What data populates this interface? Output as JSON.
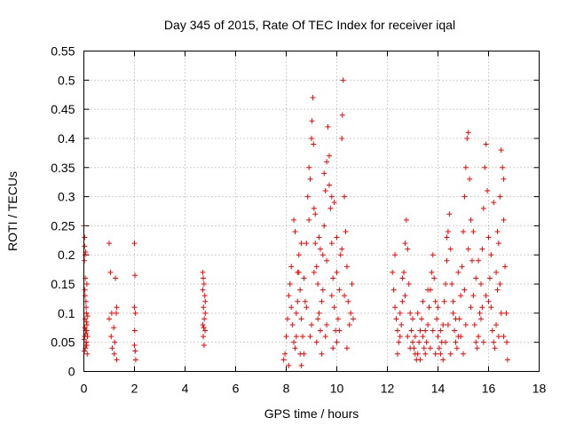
{
  "chart_data": {
    "type": "scatter",
    "title": "Day 345 of 2015, Rate Of TEC Index for receiver iqal",
    "xlabel": "GPS time / hours",
    "ylabel": "ROTI / TECUs",
    "xlim": [
      0,
      18
    ],
    "ylim": [
      0,
      0.55
    ],
    "grid": true,
    "marker": "+",
    "color": "#ff0000",
    "x_ticks": [
      "0",
      "2",
      "4",
      "6",
      "8",
      "10",
      "12",
      "14",
      "16",
      "18"
    ],
    "y_ticks": [
      "0",
      "0.05",
      "0.1",
      "0.15",
      "0.2",
      "0.25",
      "0.3",
      "0.35",
      "0.4",
      "0.45",
      "0.5",
      "0.55"
    ],
    "series": [
      {
        "name": "ROTI",
        "points": [
          [
            0.0,
            0.25
          ],
          [
            0.03,
            0.23
          ],
          [
            0.05,
            0.2
          ],
          [
            0.02,
            0.19
          ],
          [
            0.06,
            0.16
          ],
          [
            0.04,
            0.14
          ],
          [
            0.08,
            0.12
          ],
          [
            0.1,
            0.1
          ],
          [
            0.05,
            0.09
          ],
          [
            0.12,
            0.08
          ],
          [
            0.07,
            0.07
          ],
          [
            0.03,
            0.06
          ],
          [
            0.09,
            0.05
          ],
          [
            0.11,
            0.045
          ],
          [
            0.06,
            0.04
          ],
          [
            0.02,
            0.035
          ],
          [
            0.13,
            0.03
          ],
          [
            0.08,
            0.065
          ],
          [
            0.04,
            0.075
          ],
          [
            0.1,
            0.085
          ],
          [
            0.12,
            0.15
          ],
          [
            0.15,
            0.095
          ],
          [
            0.01,
            0.055
          ],
          [
            0.09,
            0.11
          ],
          [
            0.14,
            0.06
          ],
          [
            0.05,
            0.13
          ],
          [
            0.03,
            0.215
          ],
          [
            0.07,
            0.205
          ],
          [
            0.08,
            0.045
          ],
          [
            0.11,
            0.07
          ],
          [
            1.0,
            0.22
          ],
          [
            1.05,
            0.17
          ],
          [
            1.1,
            0.1
          ],
          [
            1.0,
            0.09
          ],
          [
            1.08,
            0.06
          ],
          [
            1.12,
            0.04
          ],
          [
            1.2,
            0.03
          ],
          [
            1.25,
            0.16
          ],
          [
            1.3,
            0.11
          ],
          [
            1.28,
            0.1
          ],
          [
            1.22,
            0.05
          ],
          [
            1.3,
            0.02
          ],
          [
            1.18,
            0.075
          ],
          [
            2.0,
            0.22
          ],
          [
            2.02,
            0.165
          ],
          [
            2.0,
            0.11
          ],
          [
            2.04,
            0.1
          ],
          [
            2.01,
            0.07
          ],
          [
            2.0,
            0.045
          ],
          [
            2.03,
            0.035
          ],
          [
            2.05,
            0.02
          ],
          [
            4.7,
            0.17
          ],
          [
            4.72,
            0.16
          ],
          [
            4.75,
            0.15
          ],
          [
            4.7,
            0.14
          ],
          [
            4.78,
            0.13
          ],
          [
            4.73,
            0.11
          ],
          [
            4.8,
            0.1
          ],
          [
            4.76,
            0.09
          ],
          [
            4.7,
            0.08
          ],
          [
            4.74,
            0.075
          ],
          [
            4.79,
            0.07
          ],
          [
            4.72,
            0.06
          ],
          [
            4.75,
            0.045
          ],
          [
            4.8,
            0.12
          ],
          [
            7.9,
            0.02
          ],
          [
            7.95,
            0.03
          ],
          [
            8.0,
            0.06
          ],
          [
            8.05,
            0.09
          ],
          [
            8.1,
            0.13
          ],
          [
            8.15,
            0.15
          ],
          [
            8.2,
            0.11
          ],
          [
            8.25,
            0.08
          ],
          [
            8.3,
            0.05
          ],
          [
            8.35,
            0.04
          ],
          [
            8.4,
            0.1
          ],
          [
            8.45,
            0.17
          ],
          [
            8.5,
            0.2
          ],
          [
            8.55,
            0.14
          ],
          [
            8.6,
            0.09
          ],
          [
            8.65,
            0.06
          ],
          [
            8.7,
            0.03
          ],
          [
            8.75,
            0.12
          ],
          [
            8.8,
            0.22
          ],
          [
            8.85,
            0.3
          ],
          [
            8.9,
            0.35
          ],
          [
            8.95,
            0.33
          ],
          [
            9.0,
            0.4
          ],
          [
            9.02,
            0.43
          ],
          [
            9.05,
            0.47
          ],
          [
            9.08,
            0.39
          ],
          [
            9.1,
            0.28
          ],
          [
            9.15,
            0.22
          ],
          [
            9.2,
            0.18
          ],
          [
            9.25,
            0.15
          ],
          [
            9.3,
            0.1
          ],
          [
            9.35,
            0.07
          ],
          [
            9.4,
            0.12
          ],
          [
            9.45,
            0.2
          ],
          [
            9.5,
            0.25
          ],
          [
            9.55,
            0.31
          ],
          [
            9.6,
            0.36
          ],
          [
            9.65,
            0.42
          ],
          [
            9.7,
            0.37
          ],
          [
            9.75,
            0.28
          ],
          [
            9.8,
            0.22
          ],
          [
            9.85,
            0.16
          ],
          [
            9.9,
            0.11
          ],
          [
            9.95,
            0.07
          ],
          [
            10.0,
            0.05
          ],
          [
            10.05,
            0.09
          ],
          [
            10.1,
            0.14
          ],
          [
            10.15,
            0.2
          ],
          [
            10.2,
            0.4
          ],
          [
            10.22,
            0.44
          ],
          [
            10.25,
            0.5
          ],
          [
            10.3,
            0.3
          ],
          [
            10.35,
            0.24
          ],
          [
            10.4,
            0.18
          ],
          [
            10.45,
            0.12
          ],
          [
            10.5,
            0.08
          ],
          [
            10.55,
            0.1
          ],
          [
            10.6,
            0.15
          ],
          [
            10.65,
            0.09
          ],
          [
            8.3,
            0.26
          ],
          [
            8.35,
            0.24
          ],
          [
            8.5,
            0.17
          ],
          [
            8.7,
            0.16
          ],
          [
            8.9,
            0.26
          ],
          [
            9.1,
            0.17
          ],
          [
            9.3,
            0.23
          ],
          [
            9.45,
            0.14
          ],
          [
            9.6,
            0.19
          ],
          [
            9.8,
            0.3
          ],
          [
            10.0,
            0.23
          ],
          [
            10.1,
            0.07
          ],
          [
            8.2,
            0.18
          ],
          [
            8.4,
            0.06
          ],
          [
            8.6,
            0.22
          ],
          [
            8.8,
            0.11
          ],
          [
            9.0,
            0.08
          ],
          [
            9.2,
            0.05
          ],
          [
            9.4,
            0.03
          ],
          [
            9.6,
            0.08
          ],
          [
            9.8,
            0.13
          ],
          [
            10.0,
            0.17
          ],
          [
            8.1,
            0.01
          ],
          [
            8.6,
            0.01
          ],
          [
            9.5,
            0.34
          ],
          [
            9.7,
            0.32
          ],
          [
            9.9,
            0.29
          ],
          [
            10.2,
            0.21
          ],
          [
            10.4,
            0.04
          ],
          [
            8.95,
            0.06
          ],
          [
            9.15,
            0.27
          ],
          [
            9.35,
            0.21
          ],
          [
            8.55,
            0.03
          ],
          [
            8.45,
            0.12
          ],
          [
            9.25,
            0.09
          ],
          [
            9.55,
            0.06
          ],
          [
            9.85,
            0.04
          ],
          [
            10.3,
            0.13
          ],
          [
            12.2,
            0.17
          ],
          [
            12.25,
            0.14
          ],
          [
            12.3,
            0.11
          ],
          [
            12.35,
            0.09
          ],
          [
            12.4,
            0.07
          ],
          [
            12.45,
            0.05
          ],
          [
            12.5,
            0.06
          ],
          [
            12.55,
            0.08
          ],
          [
            12.6,
            0.12
          ],
          [
            12.65,
            0.17
          ],
          [
            12.7,
            0.22
          ],
          [
            12.75,
            0.26
          ],
          [
            12.8,
            0.21
          ],
          [
            12.85,
            0.15
          ],
          [
            12.9,
            0.1
          ],
          [
            12.95,
            0.07
          ],
          [
            13.0,
            0.05
          ],
          [
            13.05,
            0.04
          ],
          [
            13.1,
            0.03
          ],
          [
            13.15,
            0.02
          ],
          [
            13.2,
            0.03
          ],
          [
            13.25,
            0.05
          ],
          [
            13.3,
            0.07
          ],
          [
            13.35,
            0.09
          ],
          [
            13.4,
            0.06
          ],
          [
            13.45,
            0.04
          ],
          [
            13.5,
            0.03
          ],
          [
            13.55,
            0.05
          ],
          [
            13.6,
            0.08
          ],
          [
            13.65,
            0.11
          ],
          [
            13.7,
            0.14
          ],
          [
            13.75,
            0.17
          ],
          [
            13.8,
            0.2
          ],
          [
            13.85,
            0.16
          ],
          [
            13.9,
            0.12
          ],
          [
            13.95,
            0.09
          ],
          [
            14.0,
            0.06
          ],
          [
            14.05,
            0.04
          ],
          [
            14.1,
            0.03
          ],
          [
            14.15,
            0.05
          ],
          [
            14.2,
            0.08
          ],
          [
            14.25,
            0.12
          ],
          [
            14.3,
            0.15
          ],
          [
            14.35,
            0.19
          ],
          [
            14.4,
            0.24
          ],
          [
            14.45,
            0.27
          ],
          [
            14.5,
            0.21
          ],
          [
            14.55,
            0.15
          ],
          [
            14.6,
            0.1
          ],
          [
            14.65,
            0.07
          ],
          [
            14.7,
            0.05
          ],
          [
            14.75,
            0.04
          ],
          [
            14.8,
            0.06
          ],
          [
            14.85,
            0.09
          ],
          [
            14.9,
            0.13
          ],
          [
            14.95,
            0.18
          ],
          [
            15.0,
            0.24
          ],
          [
            15.05,
            0.3
          ],
          [
            15.1,
            0.35
          ],
          [
            15.15,
            0.4
          ],
          [
            15.2,
            0.41
          ],
          [
            15.25,
            0.33
          ],
          [
            15.3,
            0.26
          ],
          [
            15.35,
            0.19
          ],
          [
            15.4,
            0.13
          ],
          [
            15.45,
            0.08
          ],
          [
            15.5,
            0.05
          ],
          [
            15.55,
            0.04
          ],
          [
            15.6,
            0.06
          ],
          [
            15.65,
            0.1
          ],
          [
            15.7,
            0.15
          ],
          [
            15.75,
            0.21
          ],
          [
            15.8,
            0.28
          ],
          [
            15.85,
            0.35
          ],
          [
            15.9,
            0.39
          ],
          [
            15.95,
            0.31
          ],
          [
            16.0,
            0.23
          ],
          [
            16.05,
            0.16
          ],
          [
            16.1,
            0.11
          ],
          [
            16.15,
            0.07
          ],
          [
            16.2,
            0.05
          ],
          [
            16.25,
            0.04
          ],
          [
            16.3,
            0.08
          ],
          [
            16.35,
            0.14
          ],
          [
            16.4,
            0.22
          ],
          [
            16.45,
            0.3
          ],
          [
            16.5,
            0.38
          ],
          [
            16.55,
            0.35
          ],
          [
            16.6,
            0.26
          ],
          [
            16.65,
            0.18
          ],
          [
            16.7,
            0.1
          ],
          [
            16.72,
            0.05
          ],
          [
            16.75,
            0.02
          ],
          [
            12.3,
            0.2
          ],
          [
            12.5,
            0.1
          ],
          [
            12.7,
            0.13
          ],
          [
            12.9,
            0.04
          ],
          [
            13.1,
            0.06
          ],
          [
            13.3,
            0.02
          ],
          [
            13.5,
            0.07
          ],
          [
            13.7,
            0.04
          ],
          [
            13.9,
            0.03
          ],
          [
            14.1,
            0.07
          ],
          [
            14.3,
            0.05
          ],
          [
            14.5,
            0.03
          ],
          [
            14.7,
            0.09
          ],
          [
            14.9,
            0.06
          ],
          [
            15.1,
            0.08
          ],
          [
            15.3,
            0.11
          ],
          [
            15.5,
            0.16
          ],
          [
            15.7,
            0.09
          ],
          [
            15.9,
            0.13
          ],
          [
            16.1,
            0.2
          ],
          [
            16.3,
            0.17
          ],
          [
            16.5,
            0.1
          ],
          [
            16.6,
            0.06
          ],
          [
            13.2,
            0.1
          ],
          [
            13.6,
            0.14
          ],
          [
            14.0,
            0.11
          ],
          [
            14.4,
            0.08
          ],
          [
            14.8,
            0.17
          ],
          [
            15.2,
            0.21
          ],
          [
            15.6,
            0.19
          ],
          [
            16.0,
            0.12
          ],
          [
            16.4,
            0.06
          ],
          [
            12.4,
            0.03
          ],
          [
            12.8,
            0.06
          ],
          [
            13.4,
            0.12
          ],
          [
            13.8,
            0.07
          ],
          [
            14.2,
            0.02
          ],
          [
            14.6,
            0.12
          ],
          [
            15.0,
            0.03
          ],
          [
            15.4,
            0.24
          ],
          [
            15.8,
            0.05
          ],
          [
            16.2,
            0.29
          ],
          [
            16.6,
            0.33
          ],
          [
            12.6,
            0.16
          ],
          [
            13.0,
            0.09
          ],
          [
            14.35,
            0.23
          ],
          [
            15.05,
            0.14
          ],
          [
            15.75,
            0.11
          ],
          [
            16.45,
            0.15
          ],
          [
            16.35,
            0.24
          ]
        ]
      }
    ]
  }
}
